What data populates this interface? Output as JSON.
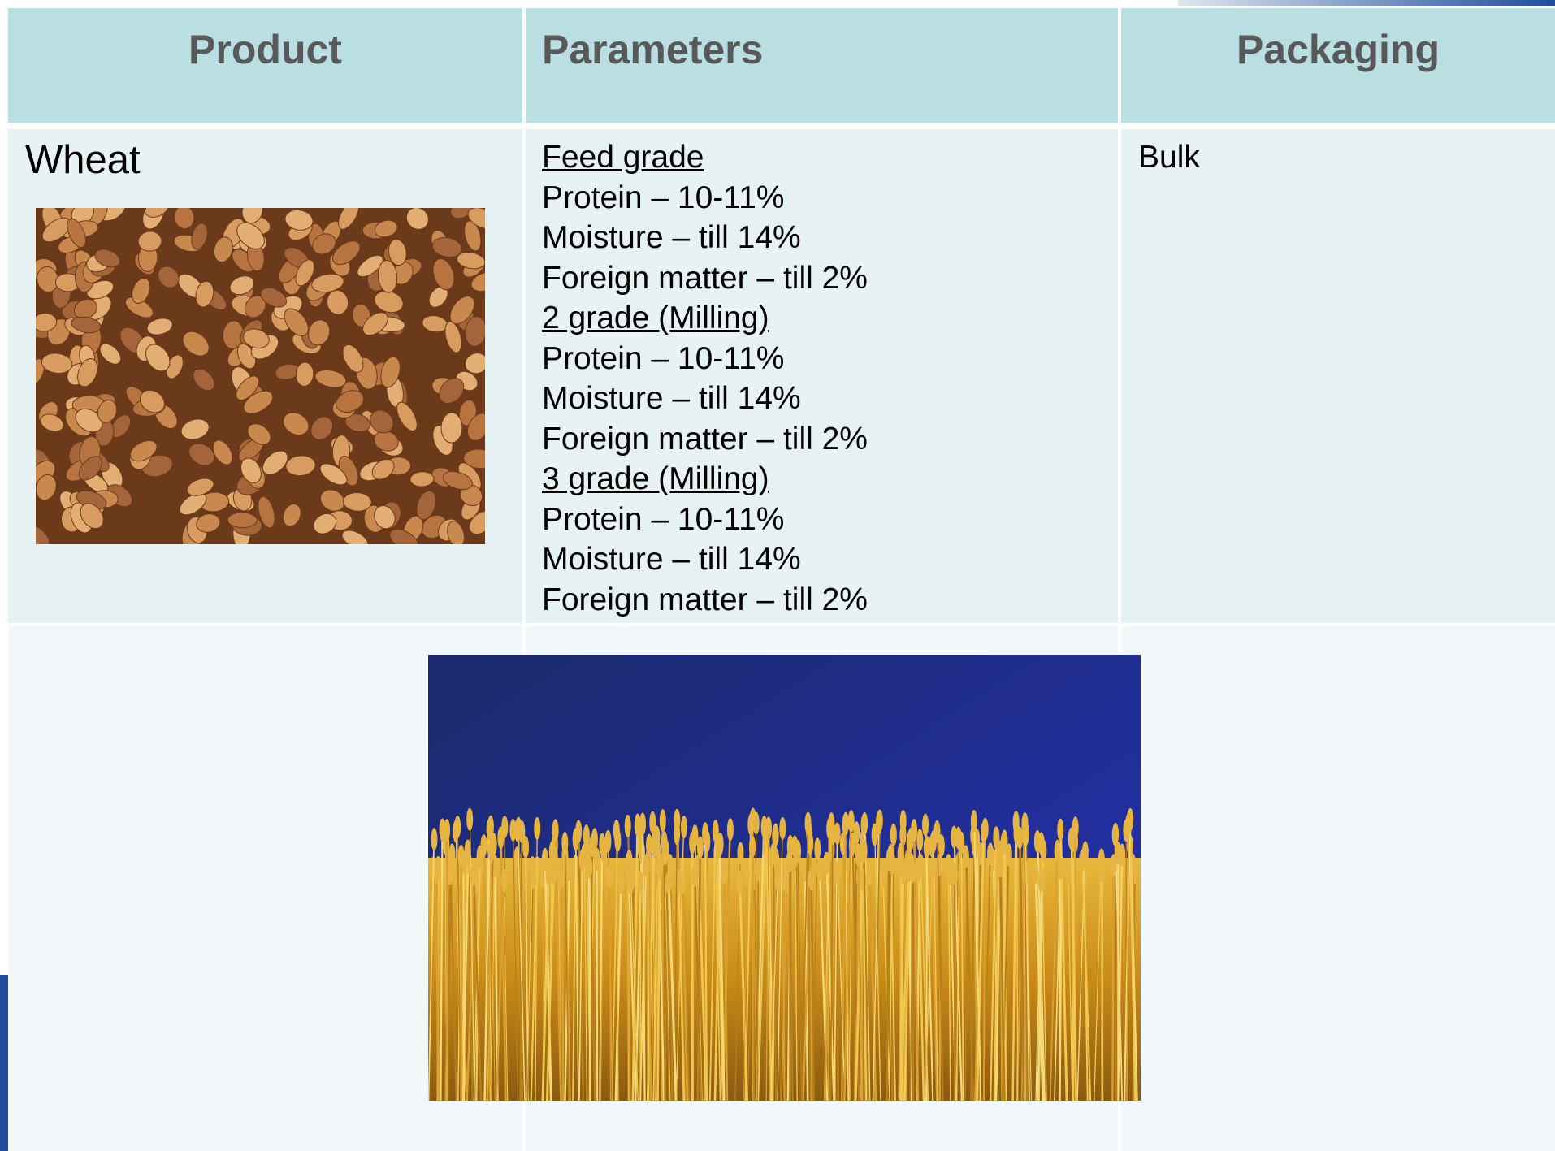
{
  "table": {
    "header": [
      "Product",
      "Parameters",
      "Packaging"
    ],
    "rows": [
      {
        "product": "Wheat",
        "parameters": [
          {
            "grade": "Feed grade",
            "lines": [
              "Protein – 10-11%",
              "Moisture – till 14%",
              "Foreign matter – till 2%"
            ]
          },
          {
            "grade": "2 grade (Milling)",
            "lines": [
              "Protein – 10-11%",
              "Moisture – till 14%",
              "Foreign matter – till 2%"
            ]
          },
          {
            "grade": "3 grade (Milling)",
            "lines": [
              "Protein – 10-11%",
              "Moisture – till 14%",
              "Foreign matter – till 2%"
            ]
          }
        ],
        "packaging": "Bulk"
      }
    ]
  }
}
